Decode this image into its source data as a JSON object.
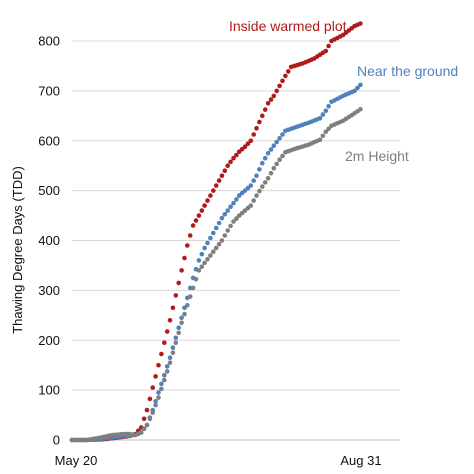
{
  "chart_data": {
    "type": "scatter",
    "ylabel": "Thawing Degree Days (TDD)",
    "xlabel": "",
    "x_tick_labels": [
      "May 20",
      "Aug 31"
    ],
    "x_tick_days": [
      0,
      103
    ],
    "ylim": [
      0,
      850
    ],
    "yticks": [
      0,
      100,
      200,
      300,
      400,
      500,
      600,
      700,
      800
    ],
    "grid": true,
    "series": [
      {
        "name": "Inside warmed plot",
        "color": "#b01a1a",
        "points": [
          [
            0,
            0
          ],
          [
            5,
            0
          ],
          [
            10,
            1
          ],
          [
            12,
            2
          ],
          [
            16,
            5
          ],
          [
            20,
            8
          ],
          [
            22,
            12
          ],
          [
            24,
            25
          ],
          [
            26,
            60
          ],
          [
            28,
            105
          ],
          [
            30,
            150
          ],
          [
            32,
            195
          ],
          [
            34,
            240
          ],
          [
            36,
            290
          ],
          [
            38,
            340
          ],
          [
            40,
            390
          ],
          [
            42,
            430
          ],
          [
            44,
            450
          ],
          [
            46,
            470
          ],
          [
            48,
            490
          ],
          [
            50,
            510
          ],
          [
            52,
            530
          ],
          [
            54,
            550
          ],
          [
            56,
            565
          ],
          [
            58,
            578
          ],
          [
            60,
            588
          ],
          [
            62,
            600
          ],
          [
            64,
            625
          ],
          [
            66,
            650
          ],
          [
            68,
            675
          ],
          [
            70,
            690
          ],
          [
            72,
            710
          ],
          [
            74,
            730
          ],
          [
            76,
            748
          ],
          [
            80,
            755
          ],
          [
            84,
            765
          ],
          [
            88,
            780
          ],
          [
            90,
            800
          ],
          [
            94,
            812
          ],
          [
            98,
            830
          ],
          [
            100,
            835
          ]
        ]
      },
      {
        "name": "Near the ground",
        "color": "#4f81bd",
        "points": [
          [
            0,
            0
          ],
          [
            5,
            0
          ],
          [
            10,
            2
          ],
          [
            14,
            5
          ],
          [
            18,
            8
          ],
          [
            22,
            10
          ],
          [
            24,
            15
          ],
          [
            26,
            30
          ],
          [
            28,
            60
          ],
          [
            30,
            95
          ],
          [
            32,
            130
          ],
          [
            34,
            165
          ],
          [
            36,
            205
          ],
          [
            38,
            245
          ],
          [
            40,
            285
          ],
          [
            42,
            325
          ],
          [
            44,
            360
          ],
          [
            46,
            385
          ],
          [
            48,
            405
          ],
          [
            50,
            425
          ],
          [
            52,
            445
          ],
          [
            54,
            460
          ],
          [
            56,
            475
          ],
          [
            58,
            490
          ],
          [
            60,
            500
          ],
          [
            62,
            510
          ],
          [
            64,
            530
          ],
          [
            66,
            555
          ],
          [
            68,
            575
          ],
          [
            70,
            590
          ],
          [
            72,
            605
          ],
          [
            74,
            620
          ],
          [
            78,
            628
          ],
          [
            82,
            636
          ],
          [
            86,
            645
          ],
          [
            88,
            660
          ],
          [
            90,
            678
          ],
          [
            94,
            690
          ],
          [
            98,
            700
          ],
          [
            100,
            712
          ]
        ]
      },
      {
        "name": "2m Height",
        "color": "#7f7f7f",
        "points": [
          [
            0,
            0
          ],
          [
            5,
            0
          ],
          [
            10,
            5
          ],
          [
            14,
            10
          ],
          [
            18,
            12
          ],
          [
            20,
            12
          ],
          [
            22,
            10
          ],
          [
            24,
            15
          ],
          [
            26,
            30
          ],
          [
            28,
            55
          ],
          [
            30,
            85
          ],
          [
            32,
            120
          ],
          [
            34,
            155
          ],
          [
            36,
            195
          ],
          [
            38,
            235
          ],
          [
            40,
            270
          ],
          [
            42,
            305
          ],
          [
            44,
            340
          ],
          [
            46,
            355
          ],
          [
            48,
            370
          ],
          [
            50,
            385
          ],
          [
            52,
            400
          ],
          [
            54,
            420
          ],
          [
            56,
            438
          ],
          [
            58,
            450
          ],
          [
            60,
            460
          ],
          [
            62,
            470
          ],
          [
            64,
            490
          ],
          [
            66,
            508
          ],
          [
            68,
            525
          ],
          [
            70,
            545
          ],
          [
            72,
            562
          ],
          [
            74,
            577
          ],
          [
            78,
            585
          ],
          [
            82,
            592
          ],
          [
            86,
            602
          ],
          [
            88,
            618
          ],
          [
            90,
            630
          ],
          [
            94,
            640
          ],
          [
            98,
            655
          ],
          [
            100,
            663
          ]
        ]
      }
    ],
    "annotations": [
      "Inside warmed plot",
      "Near the ground",
      "2m Height"
    ]
  }
}
